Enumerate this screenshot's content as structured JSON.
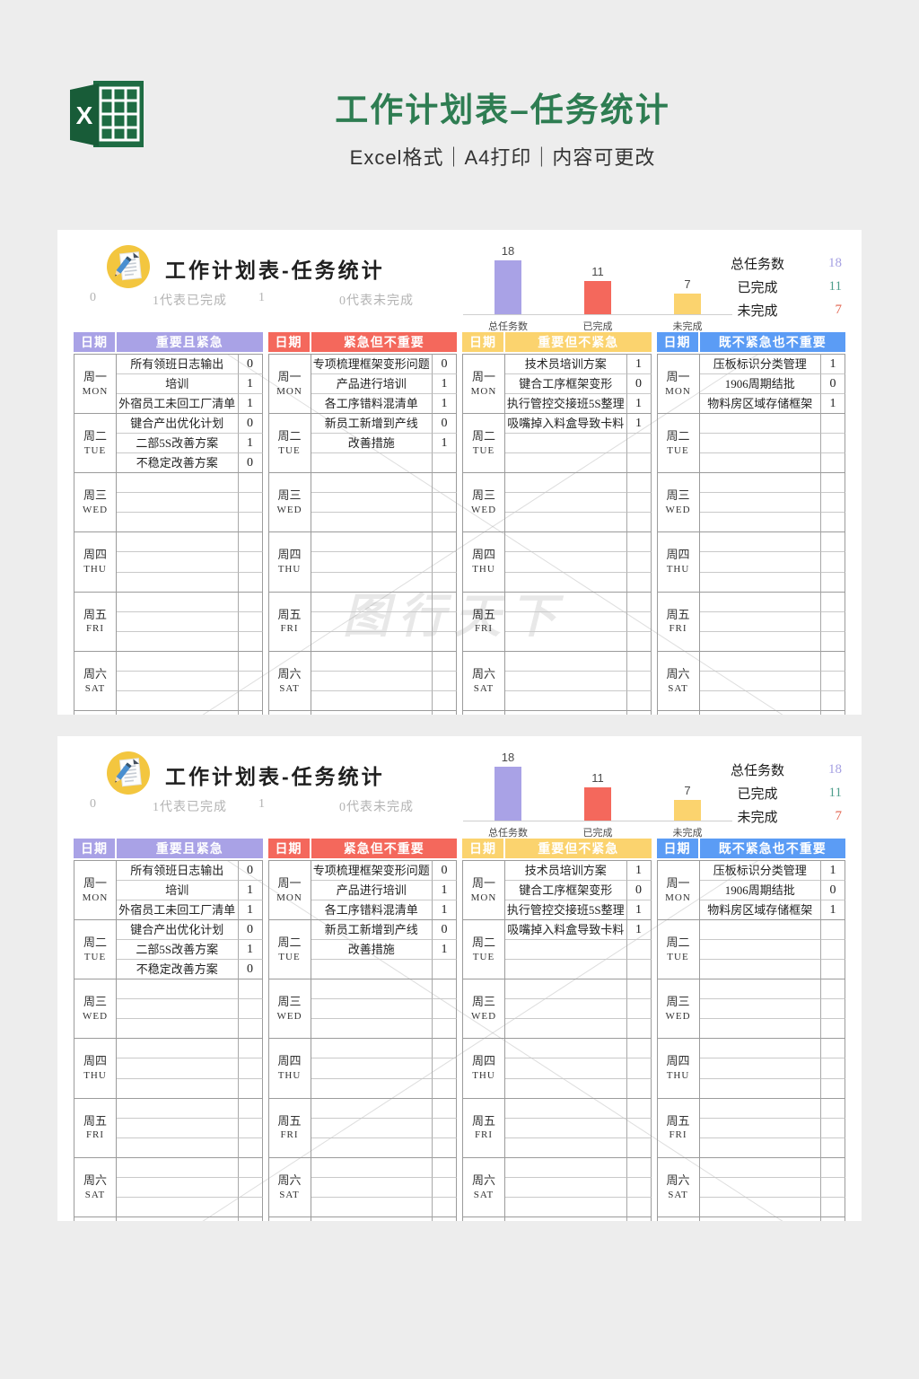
{
  "header": {
    "title": "工作计划表–任务统计",
    "subtitle": "Excel格式｜A4打印｜内容可更改"
  },
  "panel": {
    "title": "工作计划表-任务统计",
    "legend": [
      "0",
      "1代表已完成",
      "1",
      "0代表未完成"
    ],
    "stats": [
      {
        "label": "总任务数",
        "value": "18",
        "color": "#a5a0e2"
      },
      {
        "label": "已完成",
        "value": "11",
        "color": "#4f9f8d"
      },
      {
        "label": "未完成",
        "value": "7",
        "color": "#e2614b"
      }
    ],
    "date_header": "日期",
    "days": [
      {
        "cn": "周一",
        "en": "MON"
      },
      {
        "cn": "周二",
        "en": "TUE"
      },
      {
        "cn": "周三",
        "en": "WED"
      },
      {
        "cn": "周四",
        "en": "THU"
      },
      {
        "cn": "周五",
        "en": "FRI"
      },
      {
        "cn": "周六",
        "en": "SAT"
      }
    ],
    "quadrants": [
      {
        "title": "重要且紧急",
        "color": "#a9a2e6",
        "days": [
          [
            [
              "所有领班日志输出",
              "0"
            ],
            [
              "培训",
              "1"
            ],
            [
              "外宿员工未回工厂清单",
              "1"
            ]
          ],
          [
            [
              "键合产出优化计划",
              "0"
            ],
            [
              "二部5S改善方案",
              "1"
            ],
            [
              "不稳定改善方案",
              "0"
            ]
          ],
          [],
          [],
          [],
          []
        ]
      },
      {
        "title": "紧急但不重要",
        "color": "#f4685c",
        "days": [
          [
            [
              "专项梳理框架变形问题",
              "0"
            ],
            [
              "产品进行培训",
              "1"
            ],
            [
              "各工序错料混清单",
              "1"
            ]
          ],
          [
            [
              "新员工新增到产线",
              "0"
            ],
            [
              "改善措施",
              "1"
            ]
          ],
          [],
          [],
          [],
          []
        ]
      },
      {
        "title": "重要但不紧急",
        "color": "#fbd36e",
        "days": [
          [
            [
              "技术员培训方案",
              "1"
            ],
            [
              "键合工序框架变形",
              "0"
            ],
            [
              "执行管控交接班5S整理",
              "1"
            ]
          ],
          [
            [
              "吸嘴掉入料盒导致卡料",
              "1"
            ]
          ],
          [],
          [],
          [],
          []
        ]
      },
      {
        "title": "既不紧急也不重要",
        "color": "#5b9cf5",
        "days": [
          [
            [
              "压板标识分类管理",
              "1"
            ],
            [
              "1906周期结批",
              "0"
            ],
            [
              "物料房区域存储框架",
              "1"
            ]
          ],
          [],
          [],
          [],
          [],
          []
        ]
      }
    ],
    "watermark": "图行天下"
  },
  "chart_data": {
    "type": "bar",
    "categories": [
      "总任务数",
      "已完成",
      "未完成"
    ],
    "values": [
      18,
      11,
      7
    ],
    "colors": [
      "#a9a2e6",
      "#f4685c",
      "#fbd36e"
    ],
    "title": "",
    "xlabel": "",
    "ylabel": "",
    "ylim": [
      0,
      20
    ],
    "data_labels": true,
    "legend_position": "none",
    "grid": false
  }
}
